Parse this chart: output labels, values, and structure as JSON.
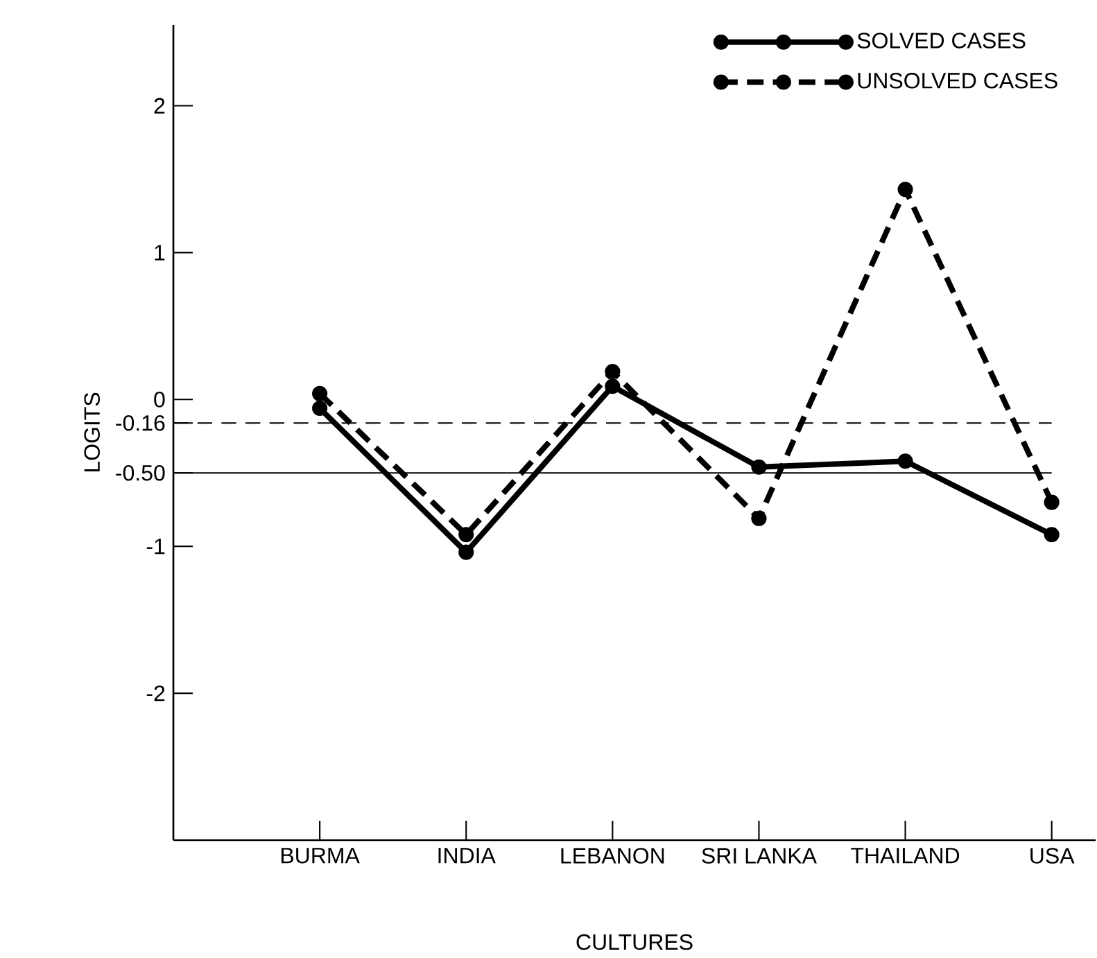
{
  "chart_data": {
    "type": "line",
    "xlabel": "CULTURES",
    "ylabel": "LOGITS",
    "categories": [
      "BURMA",
      "INDIA",
      "LEBANON",
      "SRI LANKA",
      "THAILAND",
      "USA"
    ],
    "series": [
      {
        "name": "SOLVED CASES",
        "color": "#000000",
        "line_style": "solid",
        "values": [
          -0.06,
          -1.04,
          0.09,
          -0.46,
          -0.42,
          -0.92
        ]
      },
      {
        "name": "UNSOLVED CASES",
        "color": "#000000",
        "line_style": "dashed",
        "values": [
          0.04,
          -0.92,
          0.19,
          -0.81,
          1.43,
          -0.7
        ]
      }
    ],
    "ylim": [
      -3,
      2.55
    ],
    "yticks": [
      -2,
      -1,
      {
        "value": -0.5,
        "label": "-0.50"
      },
      -0.16,
      0,
      1,
      2
    ],
    "ref_lines": [
      {
        "axis": "y",
        "value": -0.16,
        "line_style": "dashed",
        "color": "#000000"
      },
      {
        "axis": "y",
        "value": -0.5,
        "line_style": "solid",
        "color": "#000000"
      }
    ],
    "marker": "circle",
    "legend": "top right",
    "grid": false
  }
}
